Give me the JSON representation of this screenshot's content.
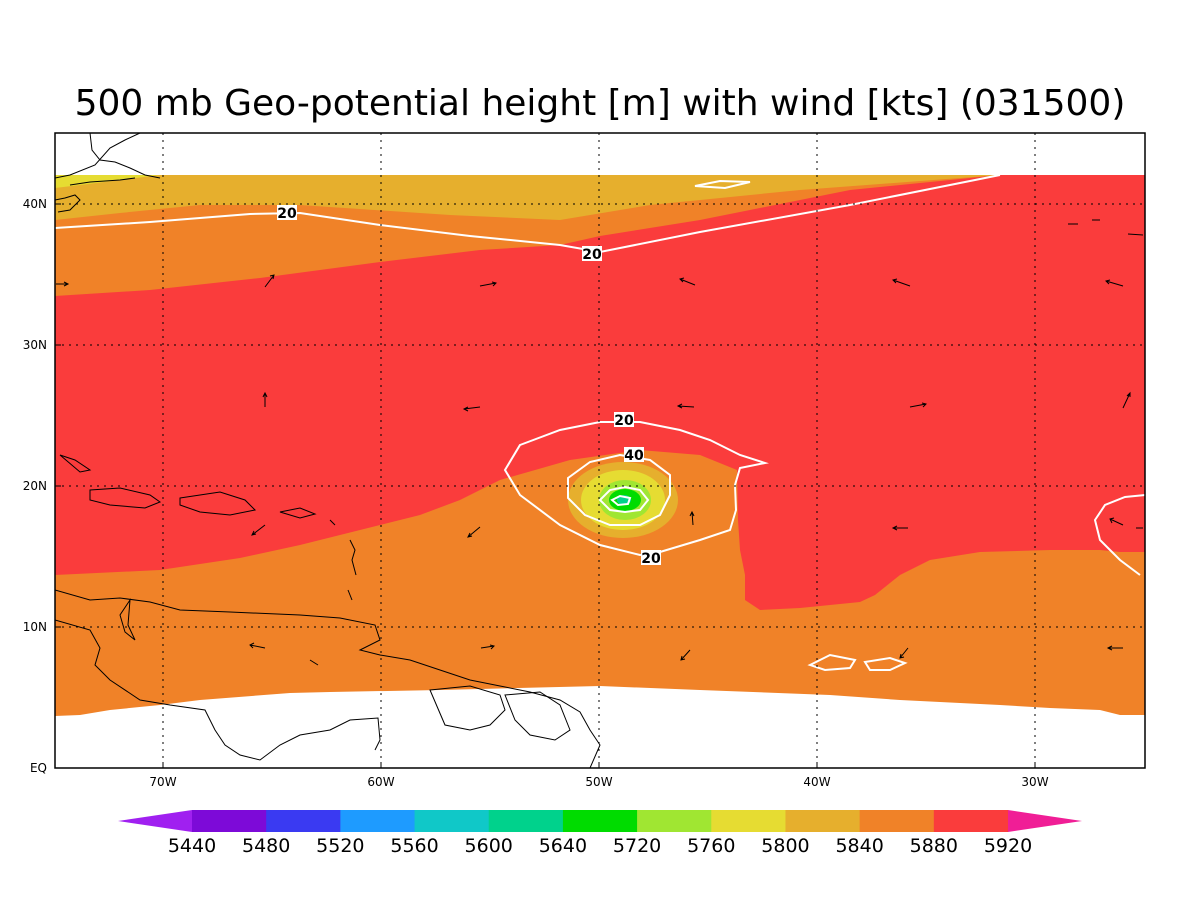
{
  "title": "500 mb Geo-potential height [m] with wind [kts] (031500)",
  "axes": {
    "x_ticks": [
      "70W",
      "60W",
      "50W",
      "40W",
      "30W"
    ],
    "y_ticks": [
      "EQ",
      "10N",
      "20N",
      "30N",
      "40N"
    ]
  },
  "colorbar": {
    "levels": [
      "5440",
      "5480",
      "5520",
      "5560",
      "5600",
      "5640",
      "5720",
      "5760",
      "5800",
      "5840",
      "5880",
      "5920"
    ],
    "colors": [
      "#a020f0",
      "#7d0ad8",
      "#3a3af2",
      "#1e9bff",
      "#10c8c8",
      "#00d28c",
      "#00dc00",
      "#a0e632",
      "#e6dc32",
      "#e6af2d",
      "#f08228",
      "#fa3c3c",
      "#f01e96"
    ]
  },
  "contour_labels": [
    "20",
    "20",
    "20",
    "40",
    "20"
  ],
  "chart_data": {
    "type": "heatmap",
    "title": "500 mb Geo-potential height [m] with wind [kts] (031500)",
    "x_range": [
      "75W",
      "25W"
    ],
    "y_range": [
      "EQ",
      "45N"
    ],
    "fill_levels_m": [
      5440,
      5480,
      5520,
      5560,
      5600,
      5640,
      5720,
      5760,
      5800,
      5840,
      5880,
      5920
    ],
    "wind_isotachs_kts": [
      20,
      40
    ],
    "low_center": {
      "lon": "49W",
      "lat": "19N"
    }
  }
}
